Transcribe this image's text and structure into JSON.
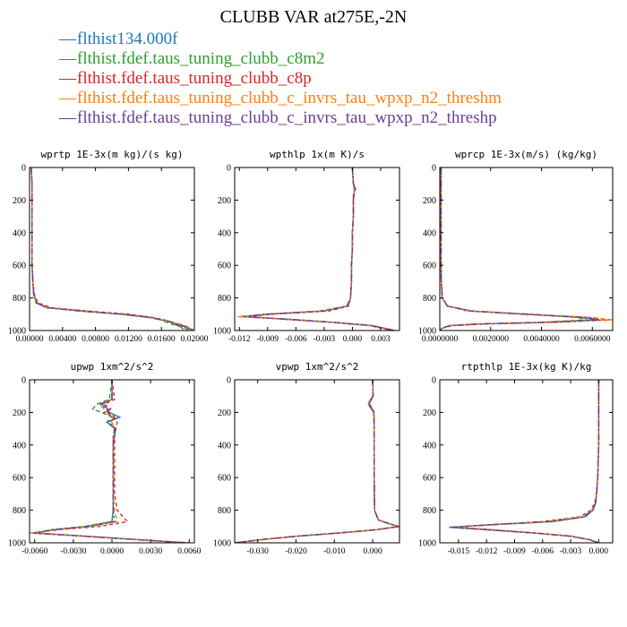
{
  "title": "CLUBB VAR at275E,-2N",
  "legend": [
    {
      "label": "flthist134.000f",
      "color": "#1f77b4"
    },
    {
      "label": "flthist.fdef.taus_tuning_clubb_c8m2",
      "color": "#2ca02c"
    },
    {
      "label": "flthist.fdef.taus_tuning_clubb_c8p",
      "color": "#d62728"
    },
    {
      "label": "flthist.fdef.taus_tuning_clubb_c_invrs_tau_wpxp_n2_threshm",
      "color": "#ff7f0e"
    },
    {
      "label": "flthist.fdef.taus_tuning_clubb_c_invrs_tau_wpxp_n2_threshp",
      "color": "#6a3d9a"
    }
  ],
  "chart_data": [
    {
      "type": "line",
      "title": "wprtp  1E-3x(m kg)/(s kg)",
      "xlim": [
        0.0,
        0.02
      ],
      "ylim": [
        1000,
        0
      ],
      "xticks": [
        "0.00000",
        "0.00400",
        "0.00800",
        "0.01200",
        "0.01600",
        "0.02000"
      ],
      "xtick_values": [
        0.0,
        0.004,
        0.008,
        0.012,
        0.016,
        0.02
      ],
      "yticks": [
        "0",
        "200",
        "400",
        "600",
        "800",
        "1000"
      ],
      "ytick_values": [
        0,
        200,
        400,
        600,
        800,
        1000
      ],
      "y": [
        0,
        100,
        200,
        300,
        400,
        500,
        600,
        700,
        780,
        830,
        860,
        880,
        900,
        920,
        940,
        960,
        980,
        1000
      ],
      "series": [
        {
          "values": [
            0.0002,
            0.0003,
            0.0003,
            0.0003,
            0.0003,
            0.0003,
            0.0003,
            0.0004,
            0.0005,
            0.0008,
            0.002,
            0.006,
            0.011,
            0.0145,
            0.0165,
            0.0178,
            0.019,
            0.0199
          ]
        },
        {
          "values": [
            0.0002,
            0.0003,
            0.0003,
            0.0003,
            0.0003,
            0.0003,
            0.0003,
            0.0004,
            0.0005,
            0.0009,
            0.0024,
            0.0068,
            0.0115,
            0.0148,
            0.0162,
            0.0172,
            0.0185,
            0.0195
          ]
        },
        {
          "values": [
            0.0002,
            0.0003,
            0.0003,
            0.0003,
            0.0003,
            0.0003,
            0.0003,
            0.0004,
            0.0006,
            0.001,
            0.0026,
            0.007,
            0.012,
            0.015,
            0.0168,
            0.0176,
            0.0184,
            0.0188
          ]
        },
        {
          "values": [
            0.0002,
            0.0003,
            0.0003,
            0.0003,
            0.0003,
            0.0003,
            0.0003,
            0.0004,
            0.0005,
            0.0008,
            0.0022,
            0.0064,
            0.0112,
            0.0146,
            0.0166,
            0.0182,
            0.0194,
            0.02
          ]
        },
        {
          "values": [
            0.0002,
            0.0003,
            0.0003,
            0.0003,
            0.0003,
            0.0003,
            0.0003,
            0.0004,
            0.0005,
            0.0008,
            0.0021,
            0.0062,
            0.0113,
            0.0147,
            0.0167,
            0.018,
            0.0192,
            0.0198
          ]
        }
      ]
    },
    {
      "type": "line",
      "title": "wpthlp  1x(m K)/s",
      "xlim": [
        -0.0125,
        0.005
      ],
      "ylim": [
        1000,
        0
      ],
      "xticks": [
        "-0.012",
        "-0.009",
        "-0.006",
        "-0.003",
        "0.000",
        "0.003"
      ],
      "xtick_values": [
        -0.012,
        -0.009,
        -0.006,
        -0.003,
        0.0,
        0.003
      ],
      "yticks": [
        "0",
        "200",
        "400",
        "600",
        "800",
        "1000"
      ],
      "ytick_values": [
        0,
        200,
        400,
        600,
        800,
        1000
      ],
      "y": [
        0,
        100,
        130,
        150,
        200,
        300,
        400,
        500,
        600,
        700,
        800,
        850,
        880,
        900,
        915,
        930,
        950,
        970,
        1000
      ],
      "series": [
        {
          "values": [
            0.0,
            0.0001,
            0.0003,
            0.0002,
            0.0001,
            0.0001,
            0.0,
            0.0,
            -0.0001,
            -0.0001,
            -0.0002,
            -0.0005,
            -0.003,
            -0.009,
            -0.0115,
            -0.007,
            -0.002,
            0.002,
            0.0045
          ]
        },
        {
          "values": [
            0.0,
            0.0001,
            0.0004,
            0.0001,
            0.0001,
            0.0001,
            0.0,
            0.0,
            -0.0001,
            -0.0001,
            -0.0002,
            -0.0006,
            -0.0035,
            -0.0095,
            -0.0118,
            -0.0068,
            -0.0018,
            0.0022,
            0.0045
          ]
        },
        {
          "values": [
            0.0,
            0.0001,
            0.0002,
            0.0002,
            0.0001,
            0.0001,
            0.0,
            0.0,
            -0.0001,
            -0.0001,
            -0.0002,
            -0.0004,
            -0.0025,
            -0.0085,
            -0.011,
            -0.0075,
            -0.0022,
            0.0018,
            0.0042
          ]
        },
        {
          "values": [
            0.0,
            0.0001,
            0.0003,
            0.0002,
            0.0001,
            0.0001,
            0.0,
            0.0,
            -0.0001,
            -0.0001,
            -0.0002,
            -0.0005,
            -0.0032,
            -0.0092,
            -0.0122,
            -0.0072,
            -0.0019,
            0.0021,
            0.0046
          ]
        },
        {
          "values": [
            0.0,
            0.0001,
            0.0003,
            0.0002,
            0.0001,
            0.0001,
            0.0,
            0.0,
            -0.0001,
            -0.0001,
            -0.0002,
            -0.0005,
            -0.003,
            -0.009,
            -0.0116,
            -0.0071,
            -0.002,
            0.002,
            0.0045
          ]
        }
      ]
    },
    {
      "type": "line",
      "title": "wprcp  1E-3x(m/s) (kg/kg)",
      "xlim": [
        0.0,
        0.0068
      ],
      "ylim": [
        1000,
        0
      ],
      "xticks": [
        "0.0000000",
        "0.0020000",
        "0.0040000",
        "0.0060000"
      ],
      "xtick_values": [
        0.0,
        0.002,
        0.004,
        0.006
      ],
      "yticks": [
        "0",
        "200",
        "400",
        "600",
        "800",
        "1000"
      ],
      "ytick_values": [
        0,
        200,
        400,
        600,
        800,
        1000
      ],
      "y": [
        0,
        200,
        400,
        600,
        700,
        800,
        850,
        880,
        900,
        920,
        935,
        950,
        960,
        970,
        985,
        1000
      ],
      "series": [
        {
          "values": [
            5e-05,
            5e-05,
            5e-05,
            5e-05,
            6e-05,
            0.0001,
            0.0003,
            0.0012,
            0.0034,
            0.0056,
            0.0062,
            0.004,
            0.0015,
            0.0004,
            0.0001,
            0.0
          ]
        },
        {
          "values": [
            5e-05,
            5e-05,
            5e-05,
            5e-05,
            6e-05,
            0.0001,
            0.0003,
            0.0013,
            0.0036,
            0.0054,
            0.0058,
            0.0038,
            0.0014,
            0.0004,
            0.0001,
            0.0
          ]
        },
        {
          "values": [
            5e-05,
            5e-05,
            5e-05,
            5e-05,
            6e-05,
            0.0001,
            0.0003,
            0.0011,
            0.0032,
            0.0058,
            0.0066,
            0.0045,
            0.0018,
            0.0005,
            0.0001,
            0.0
          ]
        },
        {
          "values": [
            5e-05,
            5e-05,
            5e-05,
            5e-05,
            6e-05,
            0.0001,
            0.0003,
            0.0012,
            0.0035,
            0.006,
            0.0068,
            0.0044,
            0.0016,
            0.0004,
            0.0001,
            0.0
          ]
        },
        {
          "values": [
            5e-05,
            5e-05,
            5e-05,
            5e-05,
            6e-05,
            0.0001,
            0.0003,
            0.0012,
            0.0034,
            0.0057,
            0.0063,
            0.0041,
            0.0015,
            0.0004,
            0.0001,
            0.0
          ]
        }
      ]
    },
    {
      "type": "line",
      "title": "upwp  1xm^2/s^2",
      "xlim": [
        -0.0064,
        0.0064
      ],
      "ylim": [
        1000,
        0
      ],
      "xticks": [
        "-0.0060",
        "-0.0030",
        "0.0000",
        "0.0030",
        "0.0060"
      ],
      "xtick_values": [
        -0.006,
        -0.003,
        0.0,
        0.003,
        0.006
      ],
      "yticks": [
        "0",
        "200",
        "400",
        "600",
        "800",
        "1000"
      ],
      "ytick_values": [
        0,
        200,
        400,
        600,
        800,
        1000
      ],
      "y": [
        0,
        120,
        150,
        180,
        200,
        230,
        260,
        300,
        350,
        400,
        500,
        600,
        700,
        800,
        870,
        900,
        920,
        940,
        960,
        980,
        1000
      ],
      "series": [
        {
          "values": [
            0.0,
            0.0,
            -0.0008,
            -0.0003,
            -0.0002,
            0.0006,
            -0.0004,
            0.0003,
            0.0002,
            0.0001,
            0.0001,
            0.0001,
            0.0001,
            0.0001,
            0.0,
            -0.002,
            -0.0045,
            -0.006,
            -0.002,
            0.002,
            0.0058
          ]
        },
        {
          "values": [
            0.0,
            -0.0002,
            -0.0012,
            -0.0015,
            -0.0008,
            0.0,
            -0.0004,
            0.0002,
            0.0001,
            0.0001,
            0.0001,
            0.0001,
            0.0001,
            0.0001,
            0.0,
            -0.0022,
            -0.0048,
            -0.0058,
            -0.0018,
            0.002,
            0.0055
          ]
        },
        {
          "values": [
            0.0,
            0.0002,
            -0.0006,
            -0.0001,
            -0.0006,
            0.0002,
            0.0004,
            0.0003,
            0.0002,
            0.0002,
            0.0002,
            0.0002,
            0.0002,
            0.0004,
            0.0012,
            -0.001,
            -0.0042,
            -0.0062,
            -0.0022,
            0.0018,
            0.006
          ]
        },
        {
          "values": [
            0.0,
            0.0,
            -0.001,
            -0.0006,
            -0.0004,
            0.0001,
            0.0,
            0.0002,
            0.0001,
            0.0001,
            0.0001,
            0.0001,
            0.0001,
            0.0002,
            0.0004,
            -0.0016,
            -0.0044,
            -0.0064,
            -0.0022,
            0.0019,
            0.0059
          ]
        },
        {
          "values": [
            0.0,
            0.0,
            -0.0009,
            -0.0004,
            -0.0003,
            0.0003,
            -0.0002,
            0.0002,
            0.0001,
            0.0001,
            0.0001,
            0.0001,
            0.0001,
            0.0001,
            0.0002,
            -0.0018,
            -0.0046,
            -0.0061,
            -0.0021,
            0.0019,
            0.0058
          ]
        }
      ]
    },
    {
      "type": "line",
      "title": "vpwp  1xm^2/s^2",
      "xlim": [
        -0.036,
        0.007
      ],
      "ylim": [
        1000,
        0
      ],
      "xticks": [
        "-0.030",
        "-0.020",
        "-0.010",
        "0.000"
      ],
      "xtick_values": [
        -0.03,
        -0.02,
        -0.01,
        0.0
      ],
      "yticks": [
        "0",
        "200",
        "400",
        "600",
        "800",
        "1000"
      ],
      "ytick_values": [
        0,
        200,
        400,
        600,
        800,
        1000
      ],
      "y": [
        0,
        100,
        130,
        150,
        170,
        200,
        300,
        400,
        600,
        800,
        860,
        880,
        900,
        920,
        940,
        960,
        980,
        1000
      ],
      "series": [
        {
          "values": [
            0.0,
            0.0001,
            -0.0008,
            -0.0011,
            -0.0006,
            0.0003,
            0.0004,
            0.0004,
            0.0004,
            0.0005,
            0.0015,
            0.004,
            0.0068,
            0.001,
            -0.009,
            -0.02,
            -0.029,
            -0.036
          ]
        },
        {
          "values": [
            0.0,
            0.0001,
            -0.0007,
            -0.001,
            -0.0005,
            0.0003,
            0.0004,
            0.0004,
            0.0004,
            0.0005,
            0.0014,
            0.0038,
            0.0065,
            0.0008,
            -0.0092,
            -0.0202,
            -0.0292,
            -0.036
          ]
        },
        {
          "values": [
            0.0,
            0.0001,
            -0.0005,
            -0.0008,
            -0.0003,
            0.0004,
            0.0004,
            0.0004,
            0.0004,
            0.0005,
            0.0015,
            0.0042,
            0.0069,
            0.0012,
            -0.0088,
            -0.0198,
            -0.0288,
            -0.036
          ]
        },
        {
          "values": [
            0.0,
            0.0001,
            -0.0006,
            -0.0009,
            -0.0004,
            0.0003,
            0.0004,
            0.0004,
            0.0004,
            0.0005,
            0.0016,
            0.0041,
            0.007,
            0.0011,
            -0.0089,
            -0.0199,
            -0.0289,
            -0.036
          ]
        },
        {
          "values": [
            0.0,
            0.0001,
            -0.0006,
            -0.0009,
            -0.0004,
            0.0003,
            0.0004,
            0.0004,
            0.0004,
            0.0005,
            0.0015,
            0.004,
            0.0068,
            0.001,
            -0.009,
            -0.02,
            -0.029,
            -0.036
          ]
        }
      ]
    },
    {
      "type": "line",
      "title": "rtpthlp  1E-3x(kg K)/kg",
      "xlim": [
        -0.017,
        0.0015
      ],
      "ylim": [
        1000,
        0
      ],
      "xticks": [
        "-0.015",
        "-0.012",
        "-0.009",
        "-0.006",
        "-0.003",
        "0.000"
      ],
      "xtick_values": [
        -0.015,
        -0.012,
        -0.009,
        -0.006,
        -0.003,
        0.0
      ],
      "yticks": [
        "0",
        "200",
        "400",
        "600",
        "800",
        "1000"
      ],
      "ytick_values": [
        0,
        200,
        400,
        600,
        800,
        1000
      ],
      "y": [
        0,
        200,
        400,
        600,
        680,
        750,
        800,
        840,
        870,
        890,
        905,
        920,
        940,
        960,
        980,
        1000
      ],
      "series": [
        {
          "values": [
            0.0,
            0.0,
            0.0,
            -0.0001,
            -0.0002,
            -0.0003,
            -0.0006,
            -0.0015,
            -0.005,
            -0.012,
            -0.016,
            -0.012,
            -0.007,
            -0.003,
            -0.001,
            0.0
          ]
        },
        {
          "values": [
            0.0,
            0.0,
            0.0,
            -0.0001,
            -0.0002,
            -0.0003,
            -0.0006,
            -0.0014,
            -0.0048,
            -0.0115,
            -0.0155,
            -0.0118,
            -0.0068,
            -0.0029,
            -0.001,
            0.0
          ]
        },
        {
          "values": [
            0.0,
            0.0,
            0.0,
            -0.0001,
            -0.0002,
            -0.0004,
            -0.0008,
            -0.002,
            -0.006,
            -0.012,
            -0.0152,
            -0.0114,
            -0.0066,
            -0.0028,
            -0.001,
            0.0
          ]
        },
        {
          "values": [
            0.0,
            0.0,
            0.0,
            -0.0001,
            -0.0002,
            -0.0003,
            -0.0007,
            -0.0017,
            -0.0055,
            -0.0118,
            -0.0154,
            -0.0116,
            -0.0067,
            -0.0029,
            -0.001,
            0.0
          ]
        },
        {
          "values": [
            0.0,
            0.0,
            0.0,
            -0.0001,
            -0.0002,
            -0.0003,
            -0.0006,
            -0.0016,
            -0.0052,
            -0.0119,
            -0.0158,
            -0.0119,
            -0.0069,
            -0.003,
            -0.001,
            0.0
          ]
        }
      ]
    }
  ]
}
